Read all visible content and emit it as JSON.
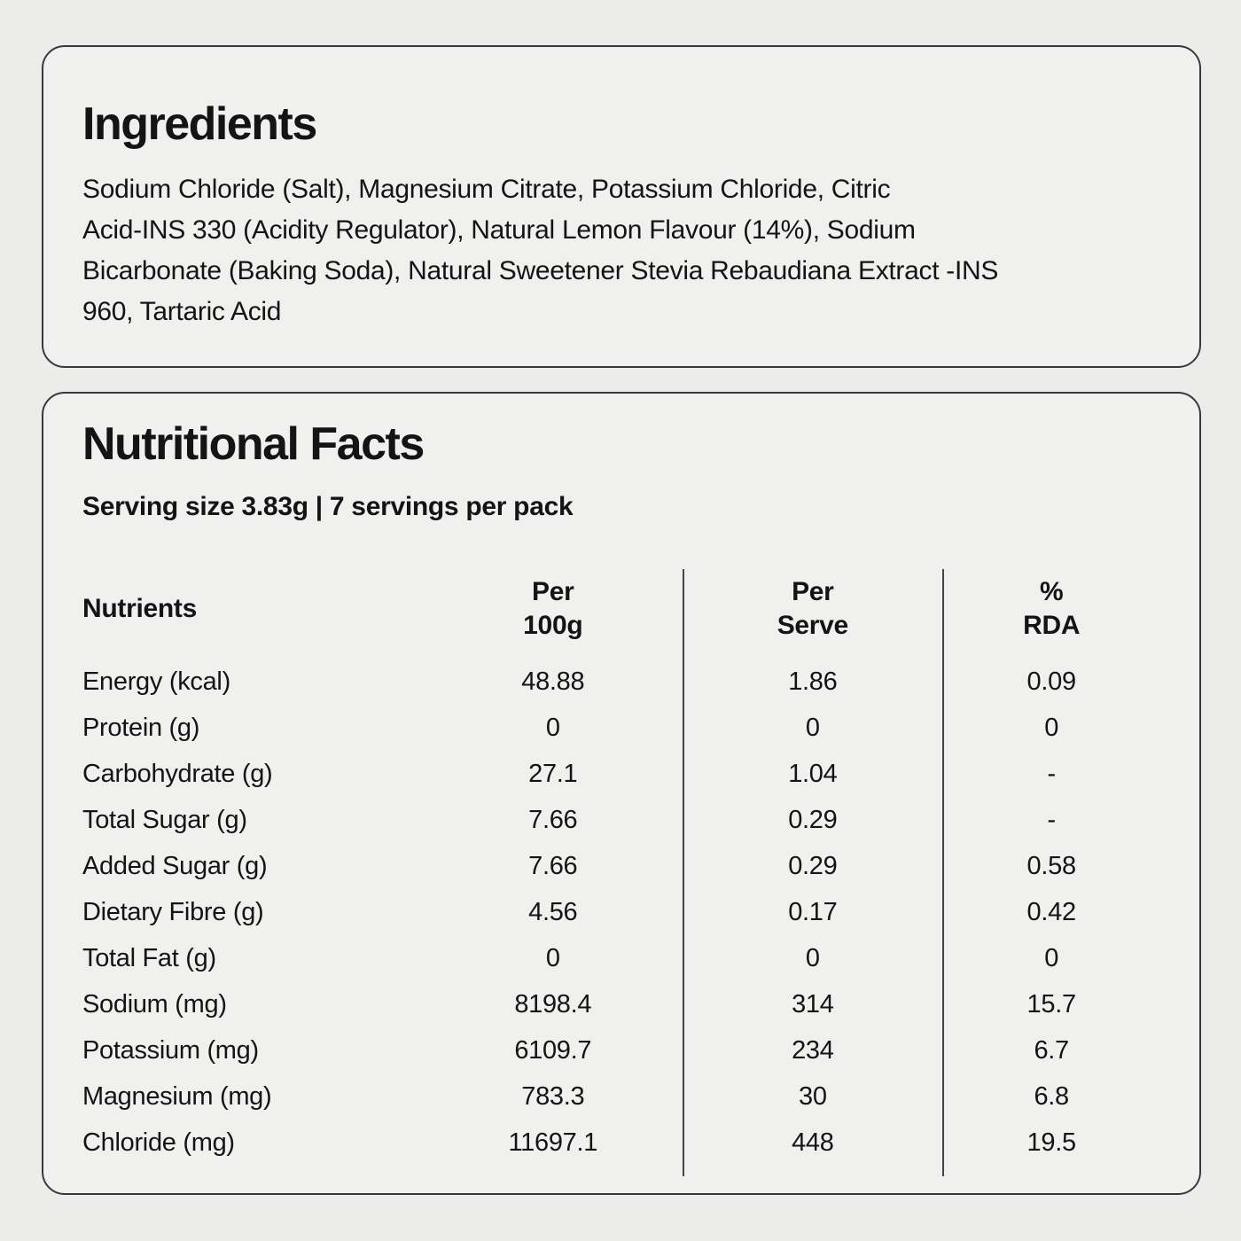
{
  "theme": {
    "page_bg": "#ececeb",
    "card_bg": "#f0f0ef",
    "border_color": "#39393b",
    "text_color": "#141414"
  },
  "ingredients": {
    "title": "Ingredients",
    "body_lines": [
      "Sodium Chloride (Salt), Magnesium Citrate, Potassium Chloride, Citric",
      "Acid-INS 330 (Acidity Regulator), Natural Lemon Flavour (14%), Sodium",
      "Bicarbonate (Baking Soda), Natural Sweetener Stevia Rebaudiana Extract -INS",
      "960, Tartaric Acid"
    ]
  },
  "nutrition": {
    "title": "Nutritional Facts",
    "serving_info": "Serving size 3.83g | 7 servings per pack",
    "table": {
      "headers": {
        "nutrients": "Nutrients",
        "per_100g": [
          "Per",
          "100g"
        ],
        "per_serve": [
          "Per",
          "Serve"
        ],
        "rda": [
          "%",
          "RDA"
        ]
      },
      "rows": [
        {
          "label": "Energy (kcal)",
          "per_100g": "48.88",
          "per_serve": "1.86",
          "rda": "0.09"
        },
        {
          "label": "Protein (g)",
          "per_100g": "0",
          "per_serve": "0",
          "rda": "0"
        },
        {
          "label": "Carbohydrate (g)",
          "per_100g": "27.1",
          "per_serve": "1.04",
          "rda": "-"
        },
        {
          "label": "Total Sugar (g)",
          "per_100g": "7.66",
          "per_serve": "0.29",
          "rda": "-"
        },
        {
          "label": "Added Sugar (g)",
          "per_100g": "7.66",
          "per_serve": "0.29",
          "rda": "0.58"
        },
        {
          "label": "Dietary Fibre (g)",
          "per_100g": "4.56",
          "per_serve": "0.17",
          "rda": "0.42"
        },
        {
          "label": "Total Fat (g)",
          "per_100g": "0",
          "per_serve": "0",
          "rda": "0"
        },
        {
          "label": "Sodium (mg)",
          "per_100g": "8198.4",
          "per_serve": "314",
          "rda": "15.7"
        },
        {
          "label": "Potassium (mg)",
          "per_100g": "6109.7",
          "per_serve": "234",
          "rda": "6.7"
        },
        {
          "label": "Magnesium (mg)",
          "per_100g": "783.3",
          "per_serve": "30",
          "rda": "6.8"
        },
        {
          "label": "Chloride (mg)",
          "per_100g": "11697.1",
          "per_serve": "448",
          "rda": "19.5"
        }
      ]
    }
  }
}
